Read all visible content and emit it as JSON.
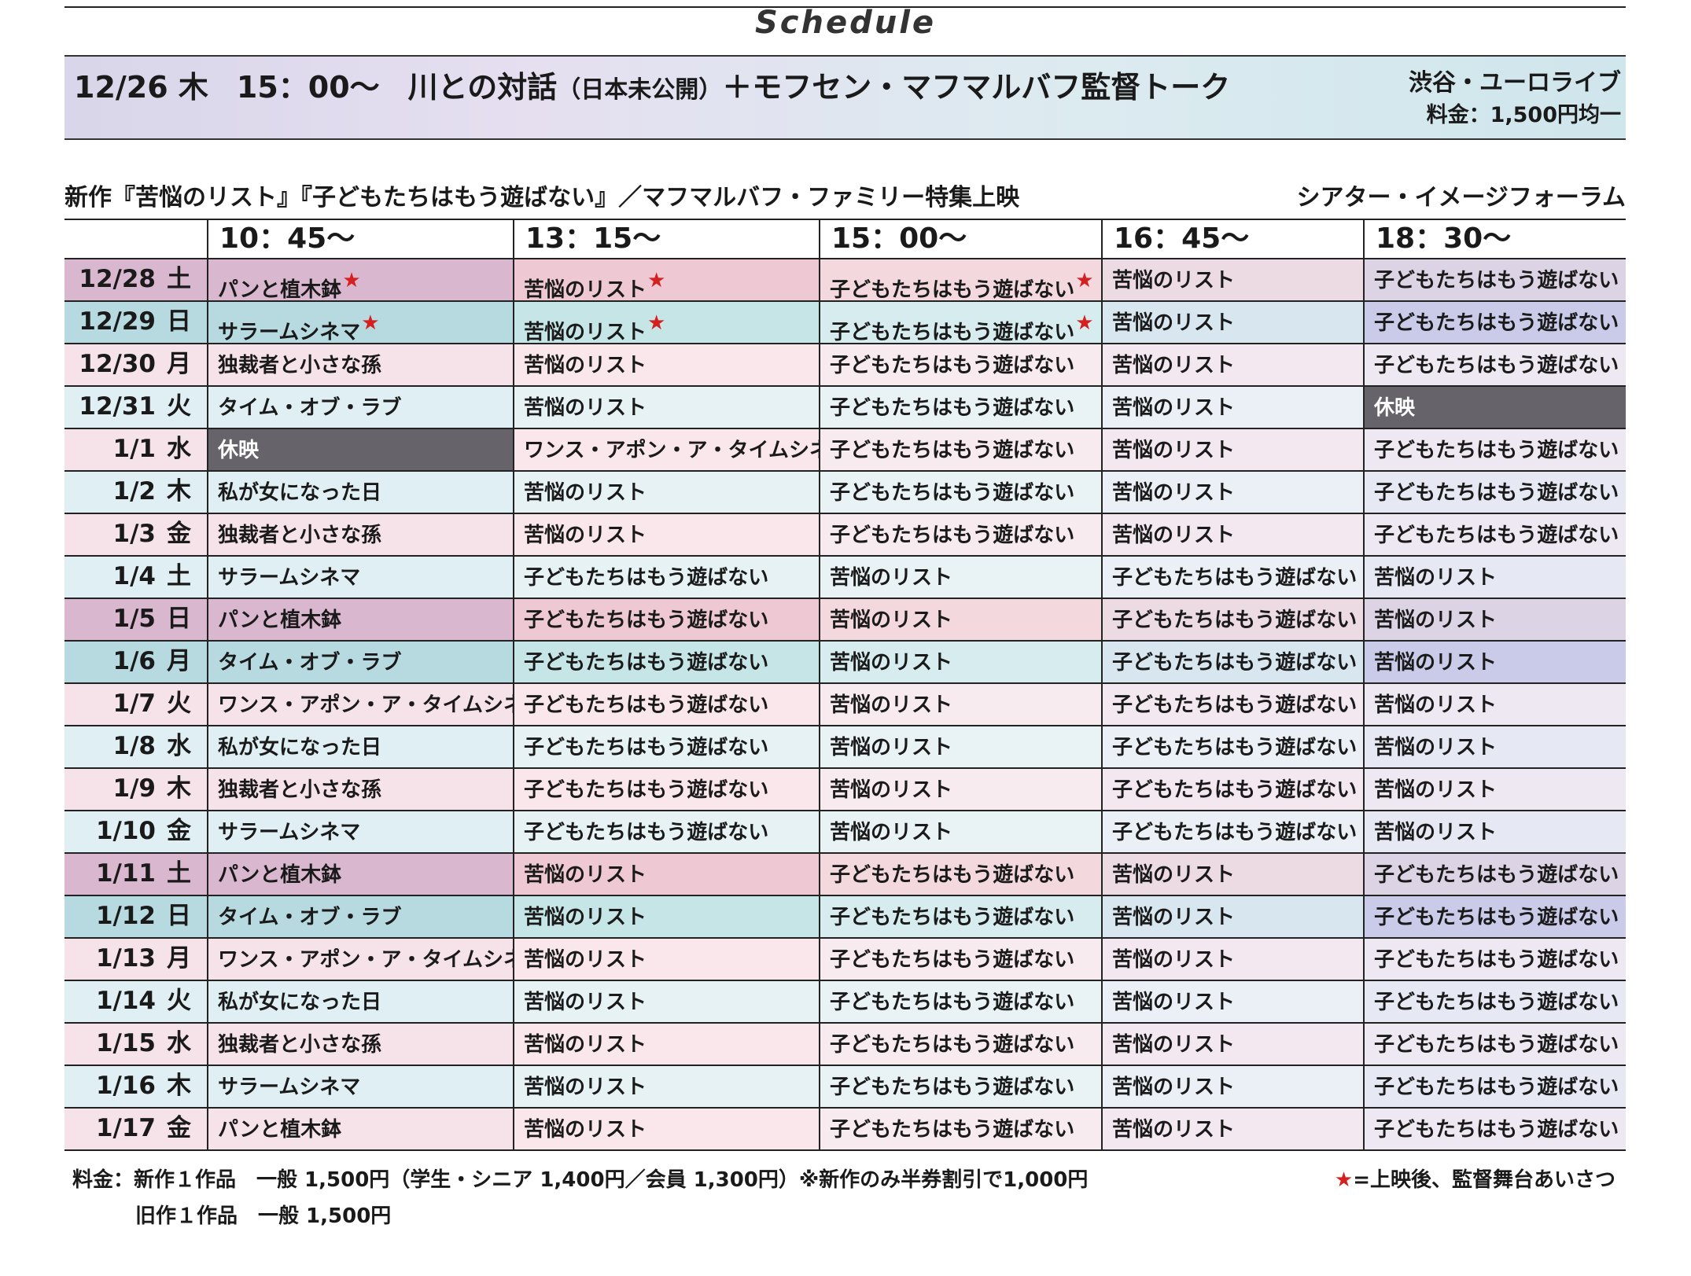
{
  "title": "Schedule",
  "event": {
    "date": "12/26 木",
    "time": "15：00～",
    "title_main": "川との対話",
    "title_note": "（日本未公開）",
    "title_rest": "＋モフセン・マフマルバフ監督トーク",
    "venue": "渋谷・ユーロライブ",
    "price": "料金：1,500円均一"
  },
  "series": {
    "heading": "新作『苦悩のリスト』『子どもたちはもう遊ばない』／マフマルバフ・ファミリー特集上映",
    "venue": "シアター・イメージフォーラム"
  },
  "columns": [
    "",
    "10：45～",
    "13：15～",
    "15：00～",
    "16：45～",
    "18：30～"
  ],
  "rows": [
    {
      "date": "12/28",
      "day": "土",
      "cells": [
        {
          "t": "パンと植木鉢",
          "star": true
        },
        {
          "t": "苦悩のリスト",
          "star": true
        },
        {
          "t": "子どもたちはもう遊ばない",
          "star": true
        },
        {
          "t": "苦悩のリスト"
        },
        {
          "t": "子どもたちはもう遊ばない"
        }
      ]
    },
    {
      "date": "12/29",
      "day": "日",
      "cells": [
        {
          "t": "サラームシネマ",
          "star": true
        },
        {
          "t": "苦悩のリスト",
          "star": true
        },
        {
          "t": "子どもたちはもう遊ばない",
          "star": true
        },
        {
          "t": "苦悩のリスト"
        },
        {
          "t": "子どもたちはもう遊ばない"
        }
      ]
    },
    {
      "date": "12/30",
      "day": "月",
      "cells": [
        {
          "t": "独裁者と小さな孫"
        },
        {
          "t": "苦悩のリスト"
        },
        {
          "t": "子どもたちはもう遊ばない"
        },
        {
          "t": "苦悩のリスト"
        },
        {
          "t": "子どもたちはもう遊ばない"
        }
      ]
    },
    {
      "date": "12/31",
      "day": "火",
      "cells": [
        {
          "t": "タイム・オブ・ラブ"
        },
        {
          "t": "苦悩のリスト"
        },
        {
          "t": "子どもたちはもう遊ばない"
        },
        {
          "t": "苦悩のリスト"
        },
        {
          "t": "休映",
          "closed": true
        }
      ]
    },
    {
      "date": "1/1",
      "day": "水",
      "cells": [
        {
          "t": "休映",
          "closed": true
        },
        {
          "t": "ワンス・アポン・ア・タイムシネマ"
        },
        {
          "t": "子どもたちはもう遊ばない"
        },
        {
          "t": "苦悩のリスト"
        },
        {
          "t": "子どもたちはもう遊ばない"
        }
      ]
    },
    {
      "date": "1/2",
      "day": "木",
      "cells": [
        {
          "t": "私が女になった日"
        },
        {
          "t": "苦悩のリスト"
        },
        {
          "t": "子どもたちはもう遊ばない"
        },
        {
          "t": "苦悩のリスト"
        },
        {
          "t": "子どもたちはもう遊ばない"
        }
      ]
    },
    {
      "date": "1/3",
      "day": "金",
      "cells": [
        {
          "t": "独裁者と小さな孫"
        },
        {
          "t": "苦悩のリスト"
        },
        {
          "t": "子どもたちはもう遊ばない"
        },
        {
          "t": "苦悩のリスト"
        },
        {
          "t": "子どもたちはもう遊ばない"
        }
      ]
    },
    {
      "date": "1/4",
      "day": "土",
      "cells": [
        {
          "t": "サラームシネマ"
        },
        {
          "t": "子どもたちはもう遊ばない"
        },
        {
          "t": "苦悩のリスト"
        },
        {
          "t": "子どもたちはもう遊ばない"
        },
        {
          "t": "苦悩のリスト"
        }
      ]
    },
    {
      "date": "1/5",
      "day": "日",
      "cells": [
        {
          "t": "パンと植木鉢"
        },
        {
          "t": "子どもたちはもう遊ばない"
        },
        {
          "t": "苦悩のリスト"
        },
        {
          "t": "子どもたちはもう遊ばない"
        },
        {
          "t": "苦悩のリスト"
        }
      ]
    },
    {
      "date": "1/6",
      "day": "月",
      "cells": [
        {
          "t": "タイム・オブ・ラブ"
        },
        {
          "t": "子どもたちはもう遊ばない"
        },
        {
          "t": "苦悩のリスト"
        },
        {
          "t": "子どもたちはもう遊ばない"
        },
        {
          "t": "苦悩のリスト"
        }
      ]
    },
    {
      "date": "1/7",
      "day": "火",
      "cells": [
        {
          "t": "ワンス・アポン・ア・タイムシネマ"
        },
        {
          "t": "子どもたちはもう遊ばない"
        },
        {
          "t": "苦悩のリスト"
        },
        {
          "t": "子どもたちはもう遊ばない"
        },
        {
          "t": "苦悩のリスト"
        }
      ]
    },
    {
      "date": "1/8",
      "day": "水",
      "cells": [
        {
          "t": "私が女になった日"
        },
        {
          "t": "子どもたちはもう遊ばない"
        },
        {
          "t": "苦悩のリスト"
        },
        {
          "t": "子どもたちはもう遊ばない"
        },
        {
          "t": "苦悩のリスト"
        }
      ]
    },
    {
      "date": "1/9",
      "day": "木",
      "cells": [
        {
          "t": "独裁者と小さな孫"
        },
        {
          "t": "子どもたちはもう遊ばない"
        },
        {
          "t": "苦悩のリスト"
        },
        {
          "t": "子どもたちはもう遊ばない"
        },
        {
          "t": "苦悩のリスト"
        }
      ]
    },
    {
      "date": "1/10",
      "day": "金",
      "cells": [
        {
          "t": "サラームシネマ"
        },
        {
          "t": "子どもたちはもう遊ばない"
        },
        {
          "t": "苦悩のリスト"
        },
        {
          "t": "子どもたちはもう遊ばない"
        },
        {
          "t": "苦悩のリスト"
        }
      ]
    },
    {
      "date": "1/11",
      "day": "土",
      "cells": [
        {
          "t": "パンと植木鉢"
        },
        {
          "t": "苦悩のリスト"
        },
        {
          "t": "子どもたちはもう遊ばない"
        },
        {
          "t": "苦悩のリスト"
        },
        {
          "t": "子どもたちはもう遊ばない"
        }
      ]
    },
    {
      "date": "1/12",
      "day": "日",
      "cells": [
        {
          "t": "タイム・オブ・ラブ"
        },
        {
          "t": "苦悩のリスト"
        },
        {
          "t": "子どもたちはもう遊ばない"
        },
        {
          "t": "苦悩のリスト"
        },
        {
          "t": "子どもたちはもう遊ばない"
        }
      ]
    },
    {
      "date": "1/13",
      "day": "月",
      "cells": [
        {
          "t": "ワンス・アポン・ア・タイムシネマ"
        },
        {
          "t": "苦悩のリスト"
        },
        {
          "t": "子どもたちはもう遊ばない"
        },
        {
          "t": "苦悩のリスト"
        },
        {
          "t": "子どもたちはもう遊ばない"
        }
      ]
    },
    {
      "date": "1/14",
      "day": "火",
      "cells": [
        {
          "t": "私が女になった日"
        },
        {
          "t": "苦悩のリスト"
        },
        {
          "t": "子どもたちはもう遊ばない"
        },
        {
          "t": "苦悩のリスト"
        },
        {
          "t": "子どもたちはもう遊ばない"
        }
      ]
    },
    {
      "date": "1/15",
      "day": "水",
      "cells": [
        {
          "t": "独裁者と小さな孫"
        },
        {
          "t": "苦悩のリスト"
        },
        {
          "t": "子どもたちはもう遊ばない"
        },
        {
          "t": "苦悩のリスト"
        },
        {
          "t": "子どもたちはもう遊ばない"
        }
      ]
    },
    {
      "date": "1/16",
      "day": "木",
      "cells": [
        {
          "t": "サラームシネマ"
        },
        {
          "t": "苦悩のリスト"
        },
        {
          "t": "子どもたちはもう遊ばない"
        },
        {
          "t": "苦悩のリスト"
        },
        {
          "t": "子どもたちはもう遊ばない"
        }
      ]
    },
    {
      "date": "1/17",
      "day": "金",
      "cells": [
        {
          "t": "パンと植木鉢"
        },
        {
          "t": "苦悩のリスト"
        },
        {
          "t": "子どもたちはもう遊ばない"
        },
        {
          "t": "苦悩のリスト"
        },
        {
          "t": "子どもたちはもう遊ばない"
        }
      ]
    }
  ],
  "row_themes": {
    "pink": [
      "#d9b8cf",
      "#eec9d3",
      "#f3d8de",
      "#ecdbe3",
      "#dcd4e4"
    ],
    "blue": [
      "#b7dae0",
      "#c6e5e6",
      "#d6ecee",
      "#d8e6f0",
      "#c9cbe9"
    ],
    "light_pink": [
      "#f6e3ea",
      "#f9e7ec",
      "#f8ebef",
      "#f3e8ef",
      "#eee8f2"
    ],
    "light_blue": [
      "#e0eff3",
      "#e6f2f4",
      "#e9f3f5",
      "#eaf0f6",
      "#e6e9f4"
    ]
  },
  "row_theme_order": [
    "pink",
    "blue",
    "light_pink",
    "light_blue",
    "light_pink",
    "light_blue",
    "light_pink",
    "light_blue",
    "pink",
    "blue",
    "light_pink",
    "light_blue",
    "light_pink",
    "light_blue",
    "pink",
    "blue",
    "light_pink",
    "light_blue",
    "light_pink",
    "light_blue",
    "light_pink"
  ],
  "footer": {
    "line1": "料金：新作１作品　一般 1,500円（学生・シニア 1,400円／会員 1,300円）※新作のみ半券割引で1,000円",
    "line2": "旧作１作品　一般 1,500円",
    "legend_star": "★",
    "legend_text": "=上映後、監督舞台あいさつ"
  },
  "colors": {
    "star": "#d6201f",
    "closed_bg": "#66646a",
    "rule": "#222222"
  }
}
